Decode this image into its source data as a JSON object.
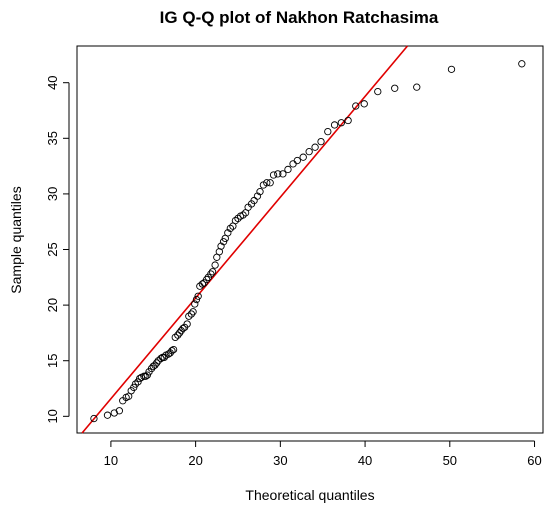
{
  "chart_data": {
    "type": "scatter",
    "title": "IG Q-Q plot of  Nakhon Ratchasima",
    "xlabel": "Theoretical quantiles",
    "ylabel": "Sample quantiles",
    "xlim": [
      6,
      61
    ],
    "ylim": [
      8.5,
      43.3
    ],
    "x_ticks": [
      10,
      20,
      30,
      40,
      50,
      60
    ],
    "y_ticks": [
      10,
      15,
      20,
      25,
      30,
      35,
      40
    ],
    "x_tick_labels": [
      "10",
      "20",
      "30",
      "40",
      "50",
      "60"
    ],
    "y_tick_labels": [
      "10",
      "15",
      "20",
      "25",
      "30",
      "35",
      "40"
    ],
    "grid": false,
    "reference_line": {
      "color": "#e00000",
      "x1": 6.6,
      "y1": 8.5,
      "x2": 45.0,
      "y2": 43.3
    },
    "point_color": "#000000",
    "points": [
      [
        8.0,
        9.8
      ],
      [
        9.6,
        10.1
      ],
      [
        10.4,
        10.3
      ],
      [
        11.0,
        10.5
      ],
      [
        11.4,
        11.4
      ],
      [
        11.8,
        11.7
      ],
      [
        12.1,
        11.8
      ],
      [
        12.4,
        12.3
      ],
      [
        12.7,
        12.6
      ],
      [
        12.9,
        12.9
      ],
      [
        13.2,
        13.1
      ],
      [
        13.4,
        13.4
      ],
      [
        13.6,
        13.5
      ],
      [
        13.9,
        13.6
      ],
      [
        14.1,
        13.6
      ],
      [
        14.3,
        13.7
      ],
      [
        14.5,
        14.0
      ],
      [
        14.8,
        14.3
      ],
      [
        15.0,
        14.5
      ],
      [
        15.2,
        14.6
      ],
      [
        15.4,
        14.8
      ],
      [
        15.6,
        15.0
      ],
      [
        15.9,
        15.2
      ],
      [
        16.1,
        15.3
      ],
      [
        16.3,
        15.3
      ],
      [
        16.5,
        15.5
      ],
      [
        16.8,
        15.6
      ],
      [
        17.0,
        15.7
      ],
      [
        17.2,
        15.9
      ],
      [
        17.4,
        16.0
      ],
      [
        17.6,
        17.1
      ],
      [
        17.9,
        17.3
      ],
      [
        18.1,
        17.5
      ],
      [
        18.3,
        17.7
      ],
      [
        18.5,
        17.9
      ],
      [
        18.7,
        18.0
      ],
      [
        19.0,
        18.3
      ],
      [
        19.2,
        19.0
      ],
      [
        19.5,
        19.2
      ],
      [
        19.7,
        19.4
      ],
      [
        19.9,
        20.1
      ],
      [
        20.1,
        20.5
      ],
      [
        20.3,
        20.8
      ],
      [
        20.5,
        21.7
      ],
      [
        20.8,
        21.9
      ],
      [
        21.0,
        22.0
      ],
      [
        21.3,
        22.3
      ],
      [
        21.5,
        22.5
      ],
      [
        21.8,
        22.8
      ],
      [
        22.0,
        23.0
      ],
      [
        22.3,
        23.6
      ],
      [
        22.5,
        24.3
      ],
      [
        22.8,
        24.8
      ],
      [
        23.0,
        25.3
      ],
      [
        23.3,
        25.7
      ],
      [
        23.5,
        26.0
      ],
      [
        23.8,
        26.5
      ],
      [
        24.1,
        26.9
      ],
      [
        24.4,
        27.1
      ],
      [
        24.7,
        27.6
      ],
      [
        25.0,
        27.8
      ],
      [
        25.3,
        28.0
      ],
      [
        25.6,
        28.1
      ],
      [
        25.9,
        28.3
      ],
      [
        26.2,
        28.8
      ],
      [
        26.6,
        29.1
      ],
      [
        26.9,
        29.4
      ],
      [
        27.3,
        29.8
      ],
      [
        27.6,
        30.2
      ],
      [
        28.0,
        30.8
      ],
      [
        28.4,
        31.0
      ],
      [
        28.8,
        31.0
      ],
      [
        29.2,
        31.7
      ],
      [
        29.7,
        31.8
      ],
      [
        30.3,
        31.8
      ],
      [
        30.9,
        32.2
      ],
      [
        31.5,
        32.7
      ],
      [
        32.0,
        33.0
      ],
      [
        32.7,
        33.3
      ],
      [
        33.4,
        33.8
      ],
      [
        34.1,
        34.2
      ],
      [
        34.8,
        34.7
      ],
      [
        35.6,
        35.6
      ],
      [
        36.4,
        36.2
      ],
      [
        37.2,
        36.4
      ],
      [
        38.0,
        36.6
      ],
      [
        38.9,
        37.9
      ],
      [
        39.9,
        38.1
      ],
      [
        41.5,
        39.2
      ],
      [
        43.5,
        39.5
      ],
      [
        46.1,
        39.6
      ],
      [
        50.2,
        41.2
      ],
      [
        58.5,
        41.7
      ]
    ]
  }
}
